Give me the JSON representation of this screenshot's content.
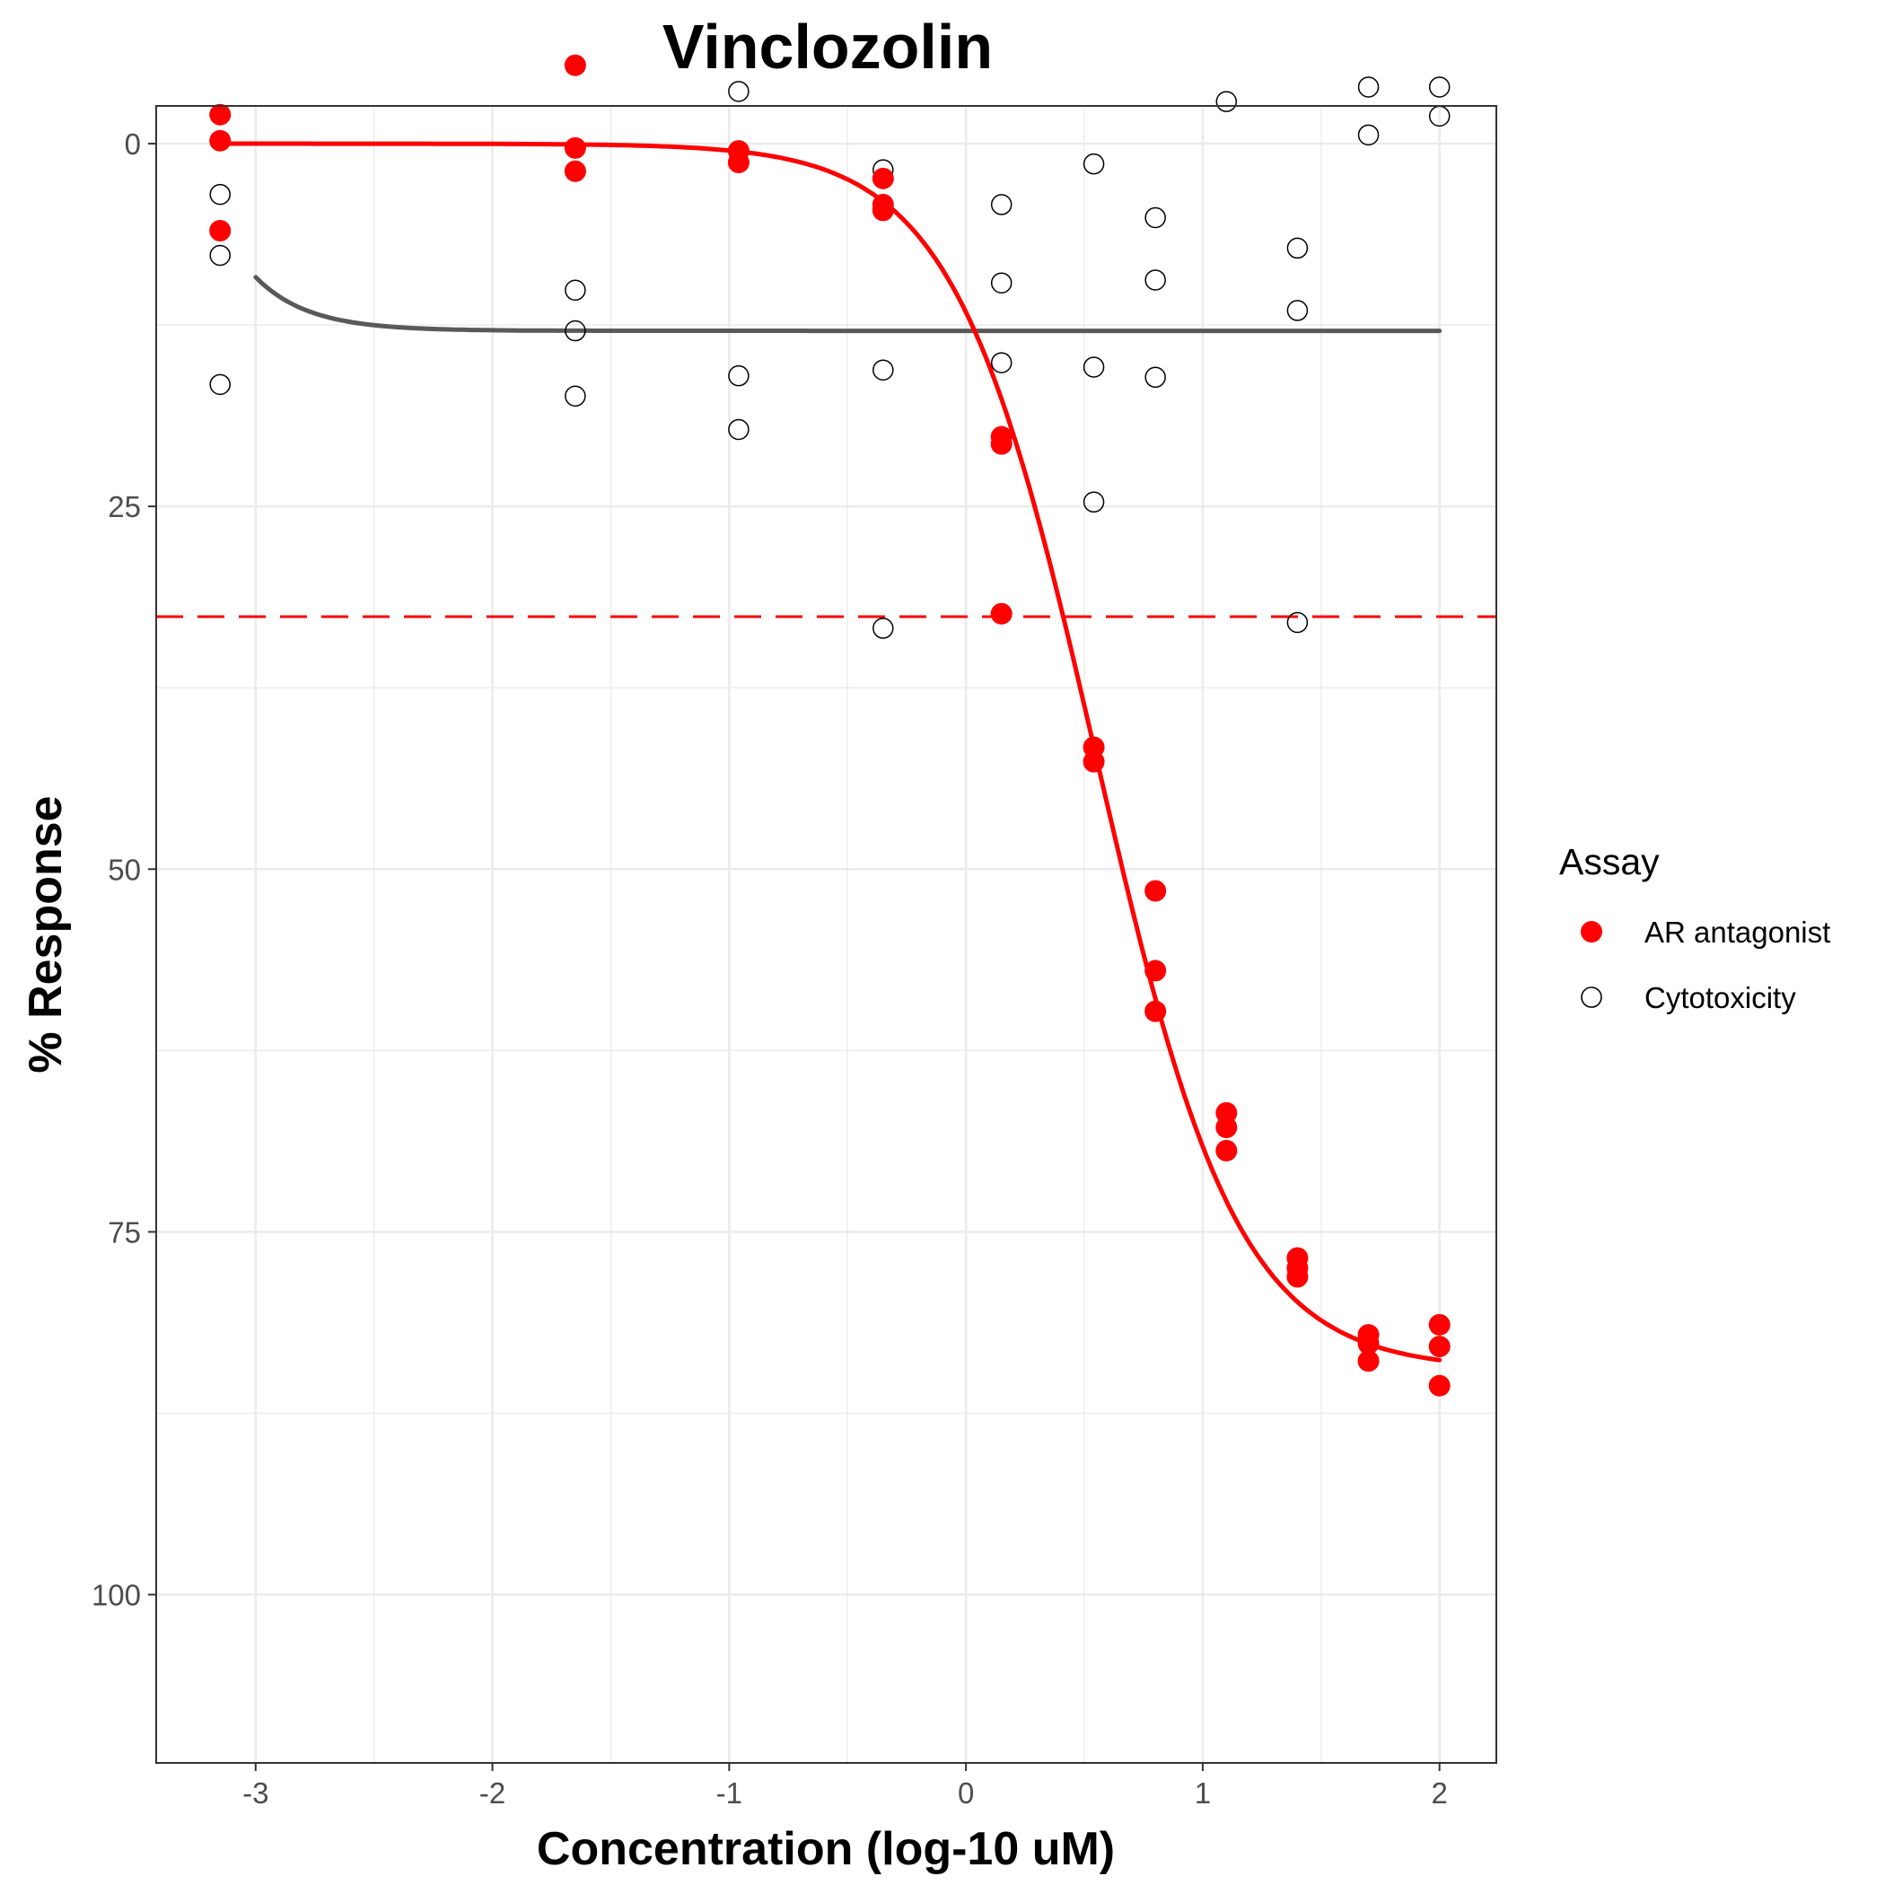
{
  "chart_data": {
    "type": "scatter",
    "title": "Vinclozolin",
    "xlabel": "Concentration (log-10 uM)",
    "ylabel": "% Response",
    "xlim": [
      -3.42,
      2.24
    ],
    "ylim": [
      -2.6,
      111.6
    ],
    "y_reversed": true,
    "grid": true,
    "x_ticks": [
      -3,
      -2,
      -1,
      0,
      1,
      2
    ],
    "x_tick_labels": [
      "-3",
      "-2",
      "-1",
      "0",
      "1",
      "2"
    ],
    "y_ticks": [
      0,
      25,
      50,
      75,
      100
    ],
    "y_tick_labels": [
      "0",
      "25",
      "50",
      "75",
      "100"
    ],
    "legend": {
      "title": "Assay",
      "position": "right",
      "entries": [
        "AR antagonist",
        "Cytotoxicity"
      ]
    },
    "colors": {
      "ar": "#ff0000",
      "cyto_fit": "#595959",
      "grid": "#ebebeb",
      "panel_border": "#333333"
    },
    "threshold_line": {
      "y": 32.6,
      "style": "dashed",
      "color": "#ff0000"
    },
    "series": [
      {
        "name": "AR antagonist",
        "marker": "filled-circle",
        "color": "#ff0000",
        "points": [
          [
            -3.15,
            -2.0
          ],
          [
            -3.15,
            -0.2
          ],
          [
            -3.15,
            6.0
          ],
          [
            -1.65,
            -5.4
          ],
          [
            -1.65,
            0.3
          ],
          [
            -1.65,
            1.9
          ],
          [
            -0.96,
            0.5
          ],
          [
            -0.96,
            1.3
          ],
          [
            -0.35,
            2.4
          ],
          [
            -0.35,
            4.2
          ],
          [
            -0.35,
            4.6
          ],
          [
            0.15,
            20.2
          ],
          [
            0.15,
            20.7
          ],
          [
            0.15,
            32.4
          ],
          [
            0.54,
            41.6
          ],
          [
            0.54,
            42.6
          ],
          [
            0.8,
            51.5
          ],
          [
            0.8,
            57.0
          ],
          [
            0.8,
            59.8
          ],
          [
            1.1,
            66.8
          ],
          [
            1.1,
            67.8
          ],
          [
            1.1,
            69.4
          ],
          [
            1.4,
            76.8
          ],
          [
            1.4,
            77.5
          ],
          [
            1.4,
            78.1
          ],
          [
            1.7,
            82.1
          ],
          [
            1.7,
            82.7
          ],
          [
            1.7,
            83.9
          ],
          [
            2.0,
            81.4
          ],
          [
            2.0,
            82.9
          ],
          [
            2.0,
            85.6
          ]
        ],
        "fit_curve": {
          "model": "hill",
          "bottom": 0,
          "top": 84.5,
          "log_ac50": 0.55,
          "slope": 1.45,
          "x_range": [
            -3.15,
            2.0
          ]
        }
      },
      {
        "name": "Cytotoxicity",
        "marker": "open-circle",
        "color": "#000000",
        "points": [
          [
            -3.15,
            3.5
          ],
          [
            -3.15,
            7.7
          ],
          [
            -3.15,
            16.6
          ],
          [
            -1.65,
            10.1
          ],
          [
            -1.65,
            12.9
          ],
          [
            -1.65,
            17.4
          ],
          [
            -0.96,
            -3.6
          ],
          [
            -0.96,
            16.0
          ],
          [
            -0.96,
            19.7
          ],
          [
            -0.35,
            1.8
          ],
          [
            -0.35,
            15.6
          ],
          [
            -0.35,
            33.4
          ],
          [
            0.15,
            4.2
          ],
          [
            0.15,
            9.6
          ],
          [
            0.15,
            15.1
          ],
          [
            0.54,
            1.4
          ],
          [
            0.54,
            15.4
          ],
          [
            0.54,
            24.7
          ],
          [
            0.8,
            5.1
          ],
          [
            0.8,
            9.4
          ],
          [
            0.8,
            16.1
          ],
          [
            1.1,
            -2.9
          ],
          [
            1.4,
            7.2
          ],
          [
            1.4,
            11.5
          ],
          [
            1.4,
            33.0
          ],
          [
            1.7,
            -3.9
          ],
          [
            1.7,
            -0.6
          ],
          [
            2.0,
            -3.9
          ],
          [
            2.0,
            -1.9
          ]
        ],
        "fit_curve": {
          "model": "exp-decay",
          "plateau": 12.9,
          "start": 9.2,
          "rate": 4.5,
          "x_range": [
            -3.0,
            2.0
          ]
        }
      }
    ]
  }
}
